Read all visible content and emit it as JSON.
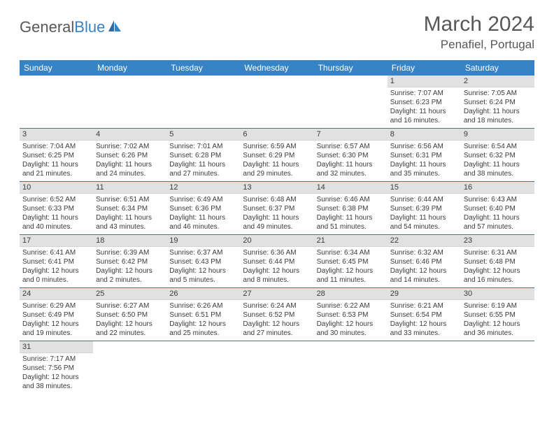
{
  "logo": {
    "part1": "General",
    "part2": "Blue"
  },
  "title": "March 2024",
  "location": "Penafiel, Portugal",
  "colors": {
    "header_bg": "#3684c6",
    "header_text": "#ffffff",
    "daynum_bg": "#e1e1e1",
    "row_border": "#3e76b5",
    "text": "#3b3b3b",
    "title_color": "#585858"
  },
  "weekdays": [
    "Sunday",
    "Monday",
    "Tuesday",
    "Wednesday",
    "Thursday",
    "Friday",
    "Saturday"
  ],
  "weeks": [
    [
      null,
      null,
      null,
      null,
      null,
      {
        "n": "1",
        "sr": "Sunrise: 7:07 AM",
        "ss": "Sunset: 6:23 PM",
        "d1": "Daylight: 11 hours",
        "d2": "and 16 minutes."
      },
      {
        "n": "2",
        "sr": "Sunrise: 7:05 AM",
        "ss": "Sunset: 6:24 PM",
        "d1": "Daylight: 11 hours",
        "d2": "and 18 minutes."
      }
    ],
    [
      {
        "n": "3",
        "sr": "Sunrise: 7:04 AM",
        "ss": "Sunset: 6:25 PM",
        "d1": "Daylight: 11 hours",
        "d2": "and 21 minutes."
      },
      {
        "n": "4",
        "sr": "Sunrise: 7:02 AM",
        "ss": "Sunset: 6:26 PM",
        "d1": "Daylight: 11 hours",
        "d2": "and 24 minutes."
      },
      {
        "n": "5",
        "sr": "Sunrise: 7:01 AM",
        "ss": "Sunset: 6:28 PM",
        "d1": "Daylight: 11 hours",
        "d2": "and 27 minutes."
      },
      {
        "n": "6",
        "sr": "Sunrise: 6:59 AM",
        "ss": "Sunset: 6:29 PM",
        "d1": "Daylight: 11 hours",
        "d2": "and 29 minutes."
      },
      {
        "n": "7",
        "sr": "Sunrise: 6:57 AM",
        "ss": "Sunset: 6:30 PM",
        "d1": "Daylight: 11 hours",
        "d2": "and 32 minutes."
      },
      {
        "n": "8",
        "sr": "Sunrise: 6:56 AM",
        "ss": "Sunset: 6:31 PM",
        "d1": "Daylight: 11 hours",
        "d2": "and 35 minutes."
      },
      {
        "n": "9",
        "sr": "Sunrise: 6:54 AM",
        "ss": "Sunset: 6:32 PM",
        "d1": "Daylight: 11 hours",
        "d2": "and 38 minutes."
      }
    ],
    [
      {
        "n": "10",
        "sr": "Sunrise: 6:52 AM",
        "ss": "Sunset: 6:33 PM",
        "d1": "Daylight: 11 hours",
        "d2": "and 40 minutes."
      },
      {
        "n": "11",
        "sr": "Sunrise: 6:51 AM",
        "ss": "Sunset: 6:34 PM",
        "d1": "Daylight: 11 hours",
        "d2": "and 43 minutes."
      },
      {
        "n": "12",
        "sr": "Sunrise: 6:49 AM",
        "ss": "Sunset: 6:36 PM",
        "d1": "Daylight: 11 hours",
        "d2": "and 46 minutes."
      },
      {
        "n": "13",
        "sr": "Sunrise: 6:48 AM",
        "ss": "Sunset: 6:37 PM",
        "d1": "Daylight: 11 hours",
        "d2": "and 49 minutes."
      },
      {
        "n": "14",
        "sr": "Sunrise: 6:46 AM",
        "ss": "Sunset: 6:38 PM",
        "d1": "Daylight: 11 hours",
        "d2": "and 51 minutes."
      },
      {
        "n": "15",
        "sr": "Sunrise: 6:44 AM",
        "ss": "Sunset: 6:39 PM",
        "d1": "Daylight: 11 hours",
        "d2": "and 54 minutes."
      },
      {
        "n": "16",
        "sr": "Sunrise: 6:43 AM",
        "ss": "Sunset: 6:40 PM",
        "d1": "Daylight: 11 hours",
        "d2": "and 57 minutes."
      }
    ],
    [
      {
        "n": "17",
        "sr": "Sunrise: 6:41 AM",
        "ss": "Sunset: 6:41 PM",
        "d1": "Daylight: 12 hours",
        "d2": "and 0 minutes."
      },
      {
        "n": "18",
        "sr": "Sunrise: 6:39 AM",
        "ss": "Sunset: 6:42 PM",
        "d1": "Daylight: 12 hours",
        "d2": "and 2 minutes."
      },
      {
        "n": "19",
        "sr": "Sunrise: 6:37 AM",
        "ss": "Sunset: 6:43 PM",
        "d1": "Daylight: 12 hours",
        "d2": "and 5 minutes."
      },
      {
        "n": "20",
        "sr": "Sunrise: 6:36 AM",
        "ss": "Sunset: 6:44 PM",
        "d1": "Daylight: 12 hours",
        "d2": "and 8 minutes."
      },
      {
        "n": "21",
        "sr": "Sunrise: 6:34 AM",
        "ss": "Sunset: 6:45 PM",
        "d1": "Daylight: 12 hours",
        "d2": "and 11 minutes."
      },
      {
        "n": "22",
        "sr": "Sunrise: 6:32 AM",
        "ss": "Sunset: 6:46 PM",
        "d1": "Daylight: 12 hours",
        "d2": "and 14 minutes."
      },
      {
        "n": "23",
        "sr": "Sunrise: 6:31 AM",
        "ss": "Sunset: 6:48 PM",
        "d1": "Daylight: 12 hours",
        "d2": "and 16 minutes."
      }
    ],
    [
      {
        "n": "24",
        "sr": "Sunrise: 6:29 AM",
        "ss": "Sunset: 6:49 PM",
        "d1": "Daylight: 12 hours",
        "d2": "and 19 minutes."
      },
      {
        "n": "25",
        "sr": "Sunrise: 6:27 AM",
        "ss": "Sunset: 6:50 PM",
        "d1": "Daylight: 12 hours",
        "d2": "and 22 minutes."
      },
      {
        "n": "26",
        "sr": "Sunrise: 6:26 AM",
        "ss": "Sunset: 6:51 PM",
        "d1": "Daylight: 12 hours",
        "d2": "and 25 minutes."
      },
      {
        "n": "27",
        "sr": "Sunrise: 6:24 AM",
        "ss": "Sunset: 6:52 PM",
        "d1": "Daylight: 12 hours",
        "d2": "and 27 minutes."
      },
      {
        "n": "28",
        "sr": "Sunrise: 6:22 AM",
        "ss": "Sunset: 6:53 PM",
        "d1": "Daylight: 12 hours",
        "d2": "and 30 minutes."
      },
      {
        "n": "29",
        "sr": "Sunrise: 6:21 AM",
        "ss": "Sunset: 6:54 PM",
        "d1": "Daylight: 12 hours",
        "d2": "and 33 minutes."
      },
      {
        "n": "30",
        "sr": "Sunrise: 6:19 AM",
        "ss": "Sunset: 6:55 PM",
        "d1": "Daylight: 12 hours",
        "d2": "and 36 minutes."
      }
    ],
    [
      {
        "n": "31",
        "sr": "Sunrise: 7:17 AM",
        "ss": "Sunset: 7:56 PM",
        "d1": "Daylight: 12 hours",
        "d2": "and 38 minutes."
      },
      null,
      null,
      null,
      null,
      null,
      null
    ]
  ]
}
